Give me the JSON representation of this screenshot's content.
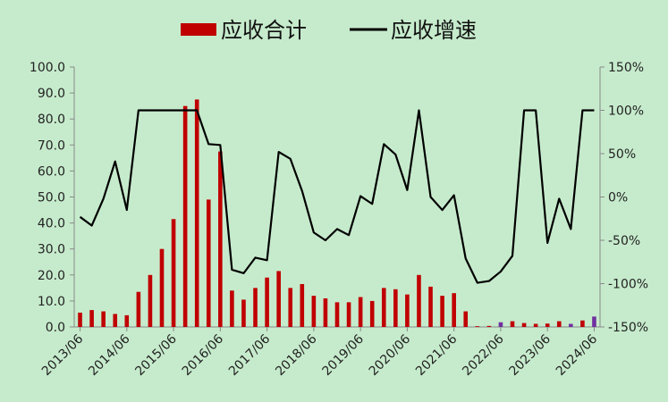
{
  "colors": {
    "background": "#c6ebcc",
    "bar": "#c00000",
    "bar_alt": "#7030a0",
    "line": "#000000",
    "axis": "#888888"
  },
  "legend": {
    "bar_label": "应收合计",
    "line_label": "应收增速"
  },
  "chart_data": {
    "type": "bar",
    "title": "",
    "xlabel": "",
    "ylabel": "",
    "legend_position": "top",
    "grid": false,
    "ylim": [
      0,
      100
    ],
    "y2lim": [
      -150,
      150
    ],
    "y_ticks": [
      "100.0",
      "90.0",
      "80.0",
      "70.0",
      "60.0",
      "50.0",
      "40.0",
      "30.0",
      "20.0",
      "10.0",
      "0.0"
    ],
    "y2_ticks": [
      "150%",
      "100%",
      "50%",
      "0%",
      "-50%",
      "-100%",
      "-150%"
    ],
    "x_ticks": [
      "2013/06",
      "2014/06",
      "2015/06",
      "2016/06",
      "2017/06",
      "2018/06",
      "2019/06",
      "2020/06",
      "2021/06",
      "2022/06",
      "2023/06",
      "2024/06"
    ],
    "categories": [
      "2013/06",
      "2013/09",
      "2013/12",
      "2014/03",
      "2014/06",
      "2014/09",
      "2014/12",
      "2015/03",
      "2015/06",
      "2015/09",
      "2015/12",
      "2016/03",
      "2016/06",
      "2016/09",
      "2016/12",
      "2017/03",
      "2017/06",
      "2017/09",
      "2017/12",
      "2018/03",
      "2018/06",
      "2018/09",
      "2018/12",
      "2019/03",
      "2019/06",
      "2019/09",
      "2019/12",
      "2020/03",
      "2020/06",
      "2020/09",
      "2020/12",
      "2021/03",
      "2021/06",
      "2021/09",
      "2021/12",
      "2022/03",
      "2022/06",
      "2022/09",
      "2022/12",
      "2023/03",
      "2023/06",
      "2023/09",
      "2023/12",
      "2024/03",
      "2024/06"
    ],
    "series": [
      {
        "name": "应收合计",
        "type": "bar",
        "axis": "left",
        "values": [
          5.5,
          6.5,
          6.0,
          5.0,
          4.5,
          13.5,
          20.0,
          30.0,
          41.5,
          85.0,
          87.5,
          49.0,
          67.5,
          14.0,
          10.5,
          15.0,
          19.0,
          21.5,
          15.0,
          16.5,
          12.0,
          11.0,
          9.5,
          9.5,
          11.5,
          10.0,
          15.0,
          14.5,
          12.5,
          20.0,
          15.5,
          12.0,
          13.0,
          6.0,
          0.3,
          0.4,
          1.8,
          2.2,
          1.5,
          1.2,
          1.3,
          2.2,
          1.2,
          2.5,
          4.0
        ]
      },
      {
        "name": "应收增速",
        "type": "line",
        "axis": "right",
        "values": [
          -23,
          -33,
          -2,
          41,
          -15,
          100,
          100,
          100,
          100,
          100,
          100,
          61,
          60,
          -84,
          -88,
          -70,
          -73,
          52,
          44,
          7,
          -41,
          -50,
          -37,
          -44,
          1,
          -8,
          61,
          49,
          8,
          100,
          0,
          -15,
          2,
          -71,
          -99,
          -97,
          -86,
          -68,
          100,
          100,
          -53,
          -2,
          -37,
          100,
          100
        ]
      }
    ],
    "bar_color_overrides": {
      "36": "#7030a0",
      "42": "#7030a0",
      "44": "#7030a0"
    }
  }
}
